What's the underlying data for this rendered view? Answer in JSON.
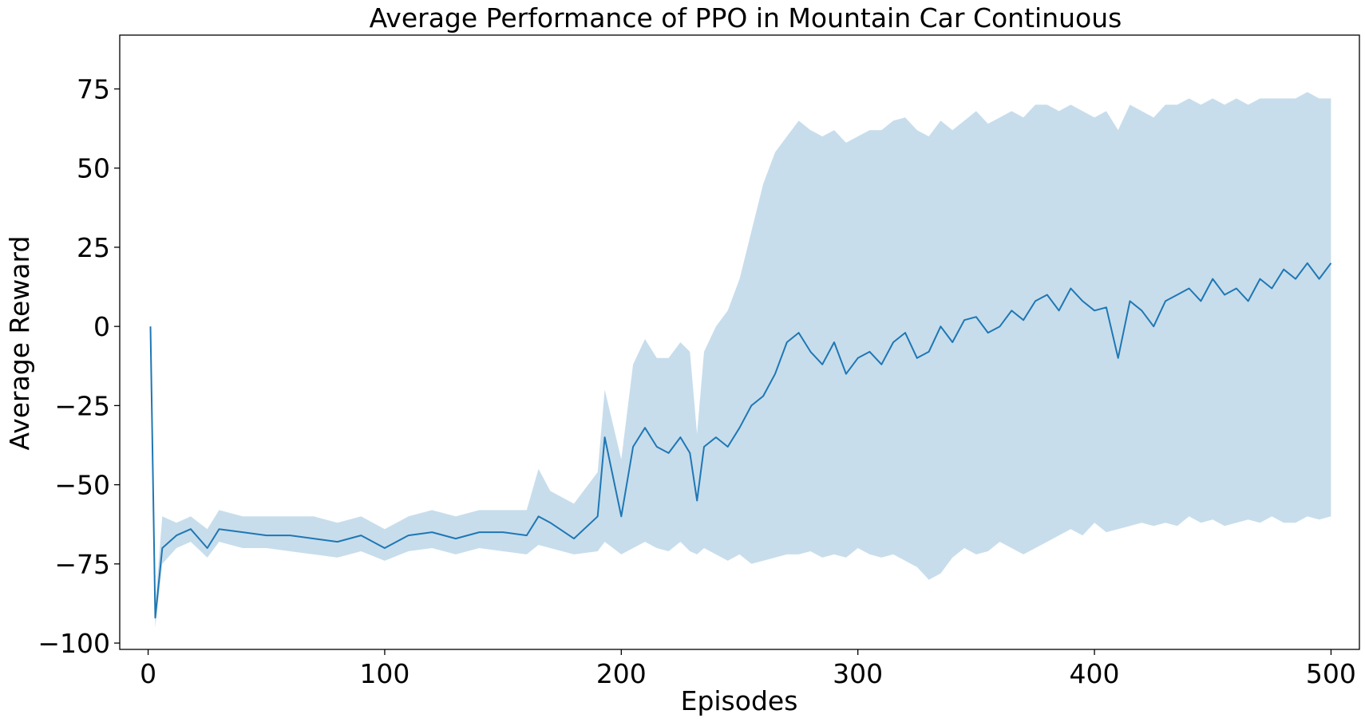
{
  "chart_data": {
    "type": "line",
    "title": "Average Performance of PPO in Mountain Car Continuous",
    "xlabel": "Episodes",
    "ylabel": "Average Reward",
    "xlim": [
      -12,
      512
    ],
    "ylim": [
      -102,
      92
    ],
    "xticks": [
      0,
      100,
      200,
      300,
      400,
      500
    ],
    "yticks": [
      -100,
      -75,
      -50,
      -25,
      0,
      25,
      50,
      75
    ],
    "xtick_labels": [
      "0",
      "100",
      "200",
      "300",
      "400",
      "500"
    ],
    "ytick_labels": [
      "−100",
      "−75",
      "−50",
      "−25",
      "0",
      "25",
      "50",
      "75"
    ],
    "grid": false,
    "colors": {
      "line": "#1f77b4",
      "band": "#1f77b4"
    },
    "series": [
      {
        "x": [
          1,
          3,
          6,
          12,
          18,
          25,
          30,
          40,
          50,
          60,
          70,
          80,
          90,
          100,
          110,
          120,
          130,
          140,
          150,
          160,
          165,
          170,
          180,
          190,
          193,
          200,
          205,
          210,
          215,
          220,
          225,
          229,
          232,
          235,
          240,
          245,
          250,
          255,
          260,
          265,
          270,
          275,
          280,
          285,
          290,
          295,
          300,
          305,
          310,
          315,
          320,
          325,
          330,
          335,
          340,
          345,
          350,
          355,
          360,
          365,
          370,
          375,
          380,
          385,
          390,
          395,
          400,
          405,
          410,
          415,
          420,
          425,
          430,
          435,
          440,
          445,
          450,
          455,
          460,
          465,
          470,
          475,
          480,
          485,
          490,
          495,
          500
        ],
        "values": [
          0,
          -92,
          -70,
          -66,
          -64,
          -70,
          -64,
          -65,
          -66,
          -66,
          -67,
          -68,
          -66,
          -70,
          -66,
          -65,
          -67,
          -65,
          -65,
          -66,
          -60,
          -62,
          -67,
          -60,
          -35,
          -60,
          -38,
          -32,
          -38,
          -40,
          -35,
          -40,
          -55,
          -38,
          -35,
          -38,
          -32,
          -25,
          -22,
          -15,
          -5,
          -2,
          -8,
          -12,
          -5,
          -15,
          -10,
          -8,
          -12,
          -5,
          -2,
          -10,
          -8,
          0,
          -5,
          2,
          3,
          -2,
          0,
          5,
          2,
          8,
          10,
          5,
          12,
          8,
          5,
          6,
          -10,
          8,
          5,
          0,
          8,
          10,
          12,
          8,
          15,
          10,
          12,
          8,
          15,
          12,
          18,
          15,
          20,
          15,
          20
        ],
        "band_lower": [
          0,
          -95,
          -75,
          -70,
          -68,
          -73,
          -68,
          -70,
          -70,
          -71,
          -72,
          -73,
          -71,
          -74,
          -71,
          -70,
          -72,
          -70,
          -71,
          -72,
          -69,
          -70,
          -72,
          -71,
          -68,
          -72,
          -70,
          -68,
          -70,
          -71,
          -68,
          -71,
          -72,
          -70,
          -72,
          -74,
          -72,
          -75,
          -74,
          -73,
          -72,
          -72,
          -71,
          -73,
          -72,
          -73,
          -70,
          -72,
          -73,
          -72,
          -74,
          -76,
          -80,
          -78,
          -73,
          -70,
          -72,
          -71,
          -68,
          -70,
          -72,
          -70,
          -68,
          -66,
          -64,
          -66,
          -62,
          -65,
          -64,
          -63,
          -62,
          -63,
          -62,
          -63,
          -60,
          -62,
          -61,
          -63,
          -62,
          -61,
          -62,
          -60,
          -62,
          -62,
          -60,
          -61,
          -60
        ],
        "band_upper": [
          0,
          -88,
          -60,
          -62,
          -60,
          -64,
          -58,
          -60,
          -60,
          -60,
          -60,
          -62,
          -60,
          -64,
          -60,
          -58,
          -60,
          -58,
          -58,
          -58,
          -45,
          -52,
          -56,
          -46,
          -20,
          -42,
          -12,
          -4,
          -10,
          -10,
          -5,
          -8,
          -34,
          -8,
          0,
          5,
          15,
          30,
          45,
          55,
          60,
          65,
          62,
          60,
          62,
          58,
          60,
          62,
          62,
          65,
          66,
          62,
          60,
          65,
          62,
          65,
          68,
          64,
          66,
          68,
          66,
          70,
          70,
          68,
          70,
          68,
          66,
          68,
          62,
          70,
          68,
          66,
          70,
          70,
          72,
          70,
          72,
          70,
          72,
          70,
          72,
          72,
          72,
          72,
          74,
          72,
          72
        ]
      }
    ]
  }
}
